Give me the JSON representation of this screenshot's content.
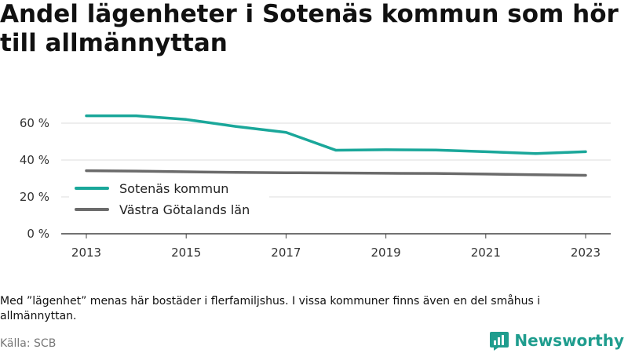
{
  "title": "Andel lägenheter i Sotenäs kommun som hör till allmännyttan",
  "note": "Med ”lägenhet” menas här bostäder i flerfamiljshus. I vissa kommuner finns även en del småhus i allmännyttan.",
  "source": "Källa: SCB",
  "brand": {
    "name": "Newsworthy",
    "icon": "newsworthy-logo-icon"
  },
  "colors": {
    "sotenas": "#1aa79a",
    "vastra": "#6b6b6b",
    "grid": "#dddddd",
    "axis": "#444444"
  },
  "chart_data": {
    "type": "line",
    "x": [
      2013,
      2014,
      2015,
      2016,
      2017,
      2018,
      2019,
      2020,
      2021,
      2022,
      2023
    ],
    "x_ticks": [
      "2013",
      "2015",
      "2017",
      "2019",
      "2021",
      "2023"
    ],
    "y_ticks": [
      0,
      20,
      40,
      60
    ],
    "y_tick_labels": [
      "0 %",
      "20 %",
      "40 %",
      "60 %"
    ],
    "ylim": [
      0,
      65
    ],
    "xlim": [
      2012.75,
      2023.25
    ],
    "grid": true,
    "legend_position": "center-left",
    "series": [
      {
        "name": "Sotenäs kommun",
        "color": "#1aa79a",
        "values": [
          64,
          64,
          62,
          58.2,
          55,
          45.3,
          45.6,
          45.4,
          44.5,
          43.5,
          44.5
        ]
      },
      {
        "name": "Västra Götalands län",
        "color": "#6b6b6b",
        "values": [
          34.2,
          34,
          33.6,
          33.3,
          33.1,
          33.0,
          32.8,
          32.7,
          32.4,
          32.0,
          31.7
        ]
      }
    ]
  }
}
